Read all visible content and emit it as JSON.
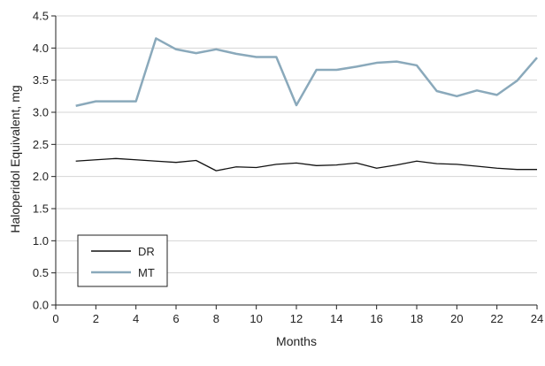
{
  "chart_data": {
    "type": "line",
    "title": "",
    "xlabel": "Months",
    "ylabel": "Haloperidol Equivalent, mg",
    "xlim": [
      0,
      24
    ],
    "ylim": [
      0,
      4.5
    ],
    "x_ticks": [
      0,
      2,
      4,
      6,
      8,
      10,
      12,
      14,
      16,
      18,
      20,
      22,
      24
    ],
    "y_ticks": [
      "0.0",
      "0.5",
      "1.0",
      "1.5",
      "2.0",
      "2.5",
      "3.0",
      "3.5",
      "4.0",
      "4.5"
    ],
    "grid": "horizontal",
    "legend_position": "bottom-left",
    "x": [
      1,
      2,
      3,
      4,
      5,
      6,
      7,
      8,
      9,
      10,
      11,
      12,
      13,
      14,
      15,
      16,
      17,
      18,
      19,
      20,
      21,
      22,
      23,
      24
    ],
    "series": [
      {
        "name": "DR",
        "color": "#111111",
        "values": [
          2.24,
          2.26,
          2.28,
          2.26,
          2.24,
          2.22,
          2.25,
          2.09,
          2.15,
          2.14,
          2.19,
          2.21,
          2.17,
          2.18,
          2.21,
          2.13,
          2.18,
          2.24,
          2.2,
          2.19,
          2.16,
          2.13,
          2.11,
          2.11
        ]
      },
      {
        "name": "MT",
        "color": "#8aa9bb",
        "values": [
          3.1,
          3.17,
          3.17,
          3.17,
          4.15,
          3.98,
          3.92,
          3.98,
          3.91,
          3.86,
          3.86,
          3.11,
          3.66,
          3.66,
          3.71,
          3.77,
          3.79,
          3.73,
          3.33,
          3.25,
          3.34,
          3.27,
          3.49,
          3.85
        ]
      }
    ]
  }
}
